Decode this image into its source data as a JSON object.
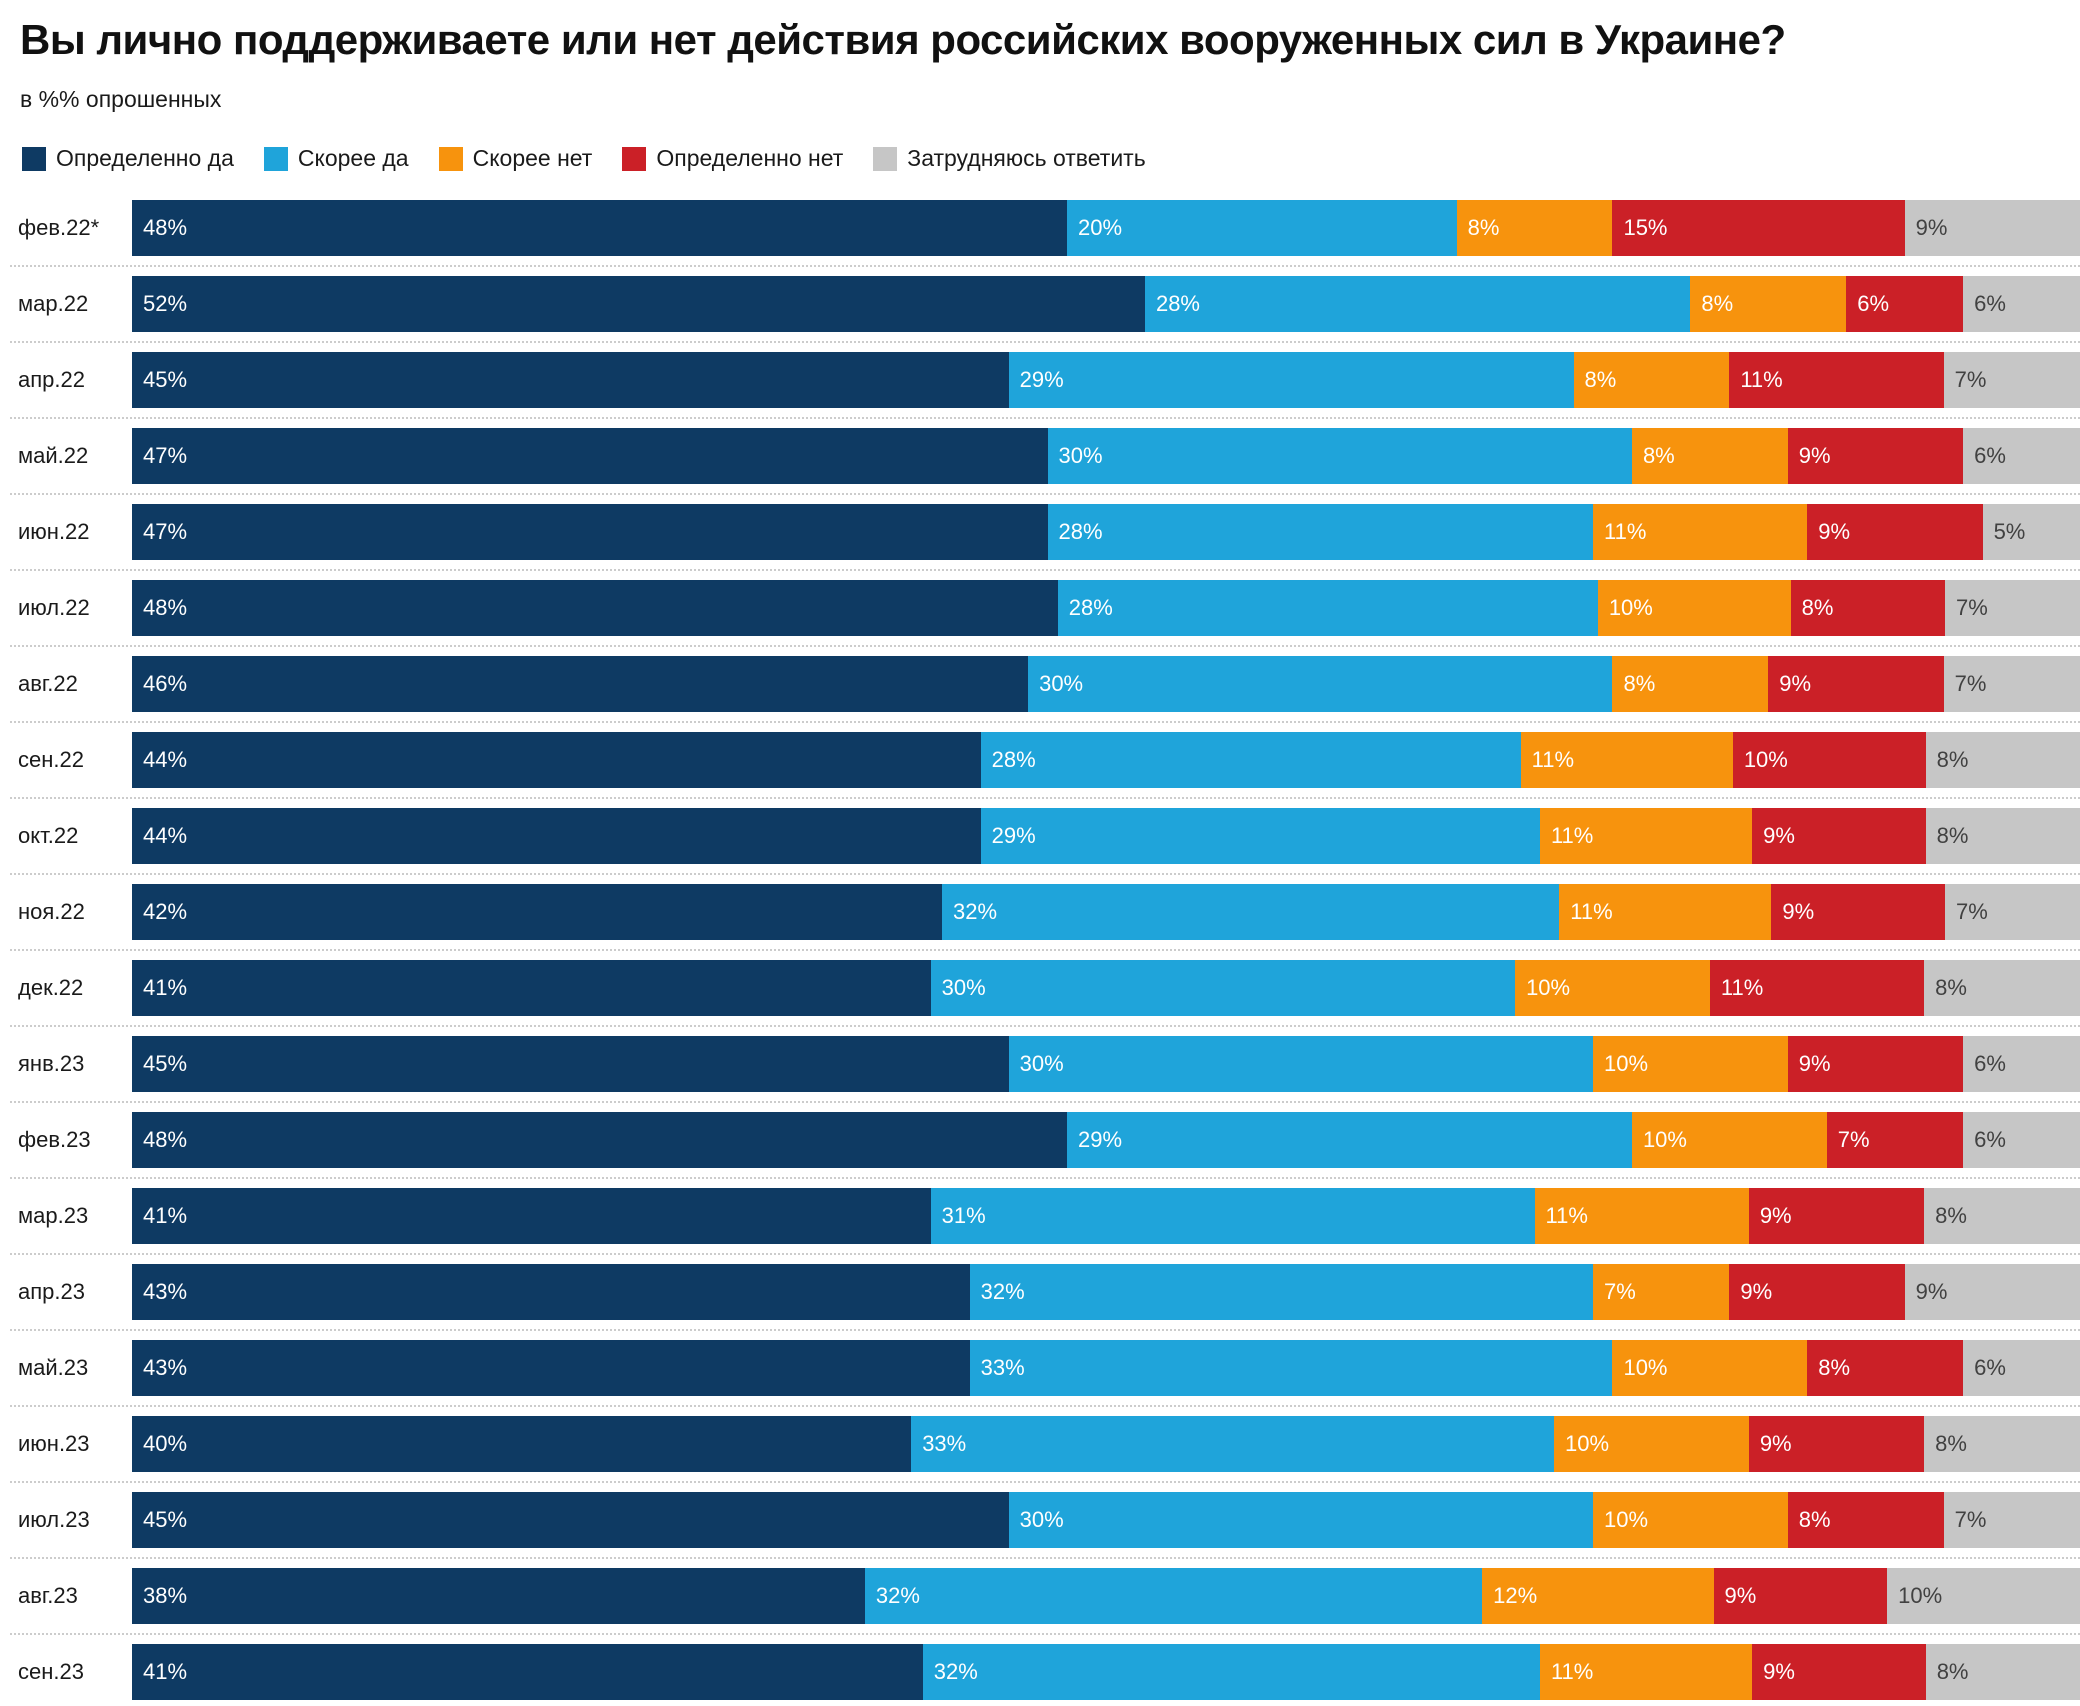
{
  "title": "Вы лично поддерживаете или нет действия российских вооруженных сил в Украине?",
  "subtitle": "в %% опрошенных",
  "chart_data": {
    "type": "bar",
    "stacked": true,
    "orientation": "horizontal",
    "unit": "%",
    "xlim": [
      0,
      100
    ],
    "grid": false,
    "legend_position": "top",
    "categories": [
      "фев.22*",
      "мар.22",
      "апр.22",
      "май.22",
      "июн.22",
      "июл.22",
      "авг.22",
      "сен.22",
      "окт.22",
      "ноя.22",
      "дек.22",
      "янв.23",
      "фев.23",
      "мар.23",
      "апр.23",
      "май.23",
      "июн.23",
      "июл.23",
      "авг.23",
      "сен.23"
    ],
    "series": [
      {
        "key": "definitely-yes",
        "name": "Определенно да",
        "color": "#0E3A63",
        "values": [
          48,
          52,
          45,
          47,
          47,
          48,
          46,
          44,
          44,
          42,
          41,
          45,
          48,
          41,
          43,
          43,
          40,
          45,
          38,
          41
        ]
      },
      {
        "key": "rather-yes",
        "name": "Скорее да",
        "color": "#1FA4DA",
        "values": [
          20,
          28,
          29,
          30,
          28,
          28,
          30,
          28,
          29,
          32,
          30,
          30,
          29,
          31,
          32,
          33,
          33,
          30,
          32,
          32
        ]
      },
      {
        "key": "rather-no",
        "name": "Скорее нет",
        "color": "#F7930D",
        "values": [
          8,
          8,
          8,
          8,
          11,
          10,
          8,
          11,
          11,
          11,
          10,
          10,
          10,
          11,
          7,
          10,
          10,
          10,
          12,
          11
        ]
      },
      {
        "key": "definitely-no",
        "name": "Определенно нет",
        "color": "#CB2027",
        "values": [
          15,
          6,
          11,
          9,
          9,
          8,
          9,
          10,
          9,
          9,
          11,
          9,
          7,
          9,
          9,
          8,
          9,
          8,
          9,
          9
        ]
      },
      {
        "key": "hard-to-answer",
        "name": "Затрудняюсь ответить",
        "color": "#C6C6C6",
        "values": [
          9,
          6,
          7,
          6,
          5,
          7,
          7,
          8,
          8,
          7,
          8,
          6,
          6,
          8,
          9,
          6,
          8,
          7,
          10,
          8
        ]
      }
    ]
  }
}
